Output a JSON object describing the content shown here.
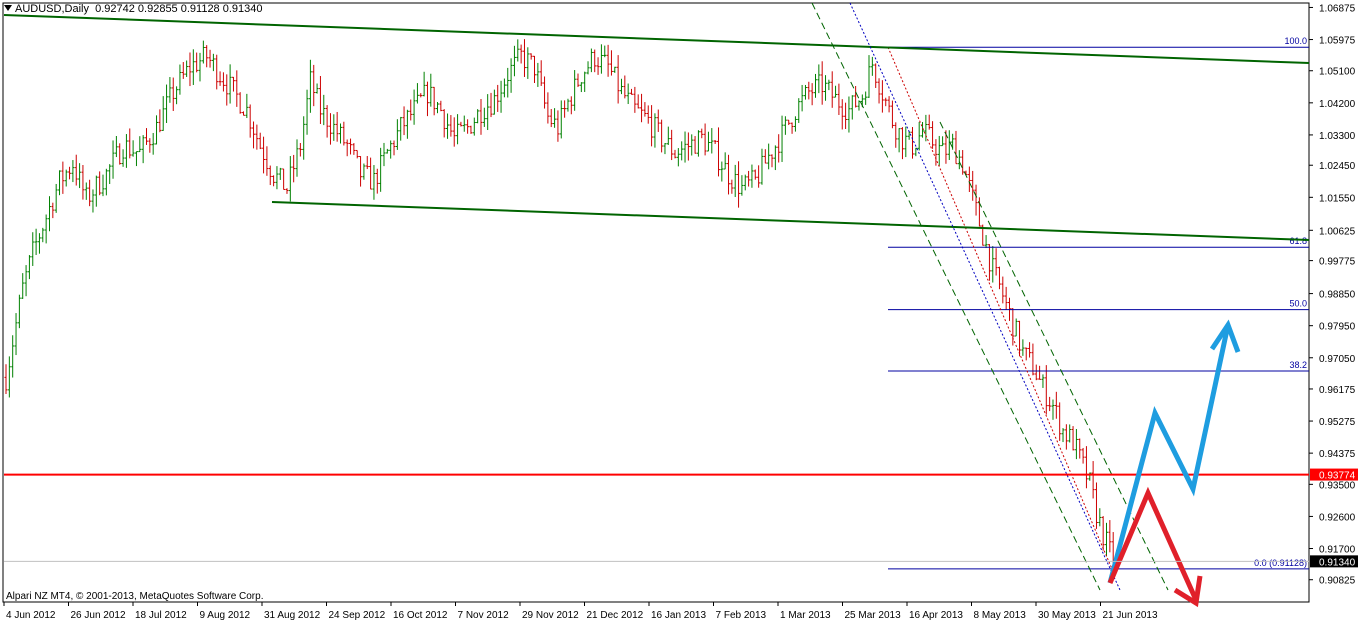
{
  "header": {
    "symbol": "AUDUSD,Daily",
    "ohlc": "0.92742 0.92855 0.91128 0.91340"
  },
  "copyright": "Alpari NZ MT4, © 2001-2013, MetaQuotes Software Corp.",
  "chart_data": {
    "type": "candlestick",
    "price_range": [
      0.902,
      1.07
    ],
    "y_ticks": [
      "1.06875",
      "1.05975",
      "1.05100",
      "1.04200",
      "1.03300",
      "1.02450",
      "1.01550",
      "1.00625",
      "0.99775",
      "0.98850",
      "0.97950",
      "0.97050",
      "0.96175",
      "0.95275",
      "0.94375",
      "0.93500",
      "0.92600",
      "0.91700",
      "0.90825"
    ],
    "x_ticks": [
      "4 Jun 2012",
      "26 Jun 2012",
      "18 Jul 2012",
      "9 Aug 2012",
      "31 Aug 2012",
      "24 Sep 2012",
      "16 Oct 2012",
      "7 Nov 2012",
      "29 Nov 2012",
      "21 Dec 2012",
      "16 Jan 2013",
      "7 Feb 2013",
      "1 Mar 2013",
      "25 Mar 2013",
      "16 Apr 2013",
      "8 May 2013",
      "30 May 2013",
      "21 Jun 2013"
    ],
    "fib_levels": [
      {
        "label": "100.0",
        "price": 1.0576
      },
      {
        "label": "61.8",
        "price": 1.0015
      },
      {
        "label": "50.0",
        "price": 0.984
      },
      {
        "label": "38.2",
        "price": 0.9668
      },
      {
        "label": "0.0 (0.91128)",
        "price": 0.91128
      }
    ],
    "horizontal_line": {
      "label": "0.93774",
      "price": 0.93774,
      "color": "#ff0000"
    },
    "current_price": {
      "label": "0.91340",
      "price": 0.9134
    },
    "colors": {
      "bull": "#008000",
      "bear": "#cc0000",
      "fib": "#0000a0",
      "channel": "#006400",
      "up_arrow": "#1e9de0",
      "down_arrow": "#e0202a"
    },
    "path": [
      [
        0,
        0.965
      ],
      [
        2,
        0.975
      ],
      [
        5,
        0.99
      ],
      [
        8,
        1.0
      ],
      [
        12,
        1.01
      ],
      [
        16,
        1.02
      ],
      [
        20,
        1.025
      ],
      [
        24,
        1.015
      ],
      [
        30,
        1.022
      ],
      [
        35,
        1.03
      ],
      [
        40,
        1.028
      ],
      [
        45,
        1.035
      ],
      [
        50,
        1.045
      ],
      [
        55,
        1.052
      ],
      [
        60,
        1.055
      ],
      [
        64,
        1.05
      ],
      [
        68,
        1.045
      ],
      [
        72,
        1.04
      ],
      [
        76,
        1.03
      ],
      [
        80,
        1.022
      ],
      [
        84,
        1.018
      ],
      [
        88,
        1.03
      ],
      [
        91,
        1.048
      ],
      [
        94,
        1.04
      ],
      [
        98,
        1.035
      ],
      [
        102,
        1.03
      ],
      [
        106,
        1.022
      ],
      [
        110,
        1.02
      ],
      [
        114,
        1.028
      ],
      [
        118,
        1.035
      ],
      [
        122,
        1.04
      ],
      [
        126,
        1.045
      ],
      [
        130,
        1.04
      ],
      [
        134,
        1.032
      ],
      [
        138,
        1.035
      ],
      [
        142,
        1.04
      ],
      [
        146,
        1.043
      ],
      [
        150,
        1.05
      ],
      [
        154,
        1.055
      ],
      [
        158,
        1.052
      ],
      [
        162,
        1.038
      ],
      [
        165,
        1.035
      ],
      [
        168,
        1.042
      ],
      [
        172,
        1.05
      ],
      [
        176,
        1.055
      ],
      [
        180,
        1.052
      ],
      [
        184,
        1.045
      ],
      [
        188,
        1.04
      ],
      [
        192,
        1.037
      ],
      [
        196,
        1.032
      ],
      [
        200,
        1.028
      ],
      [
        204,
        1.03
      ],
      [
        208,
        1.032
      ],
      [
        212,
        1.028
      ],
      [
        216,
        1.022
      ],
      [
        220,
        1.018
      ],
      [
        224,
        1.02
      ],
      [
        228,
        1.027
      ],
      [
        232,
        1.033
      ],
      [
        236,
        1.04
      ],
      [
        240,
        1.045
      ],
      [
        244,
        1.047
      ],
      [
        248,
        1.043
      ],
      [
        252,
        1.04
      ],
      [
        256,
        1.044
      ],
      [
        259,
        1.053
      ],
      [
        262,
        1.045
      ],
      [
        265,
        1.037
      ],
      [
        268,
        1.032
      ],
      [
        271,
        1.03
      ],
      [
        274,
        1.034
      ],
      [
        277,
        1.031
      ],
      [
        280,
        1.028
      ],
      [
        283,
        1.03
      ],
      [
        286,
        1.025
      ],
      [
        289,
        1.015
      ],
      [
        292,
        1.005
      ],
      [
        295,
        0.995
      ],
      [
        298,
        0.988
      ],
      [
        301,
        0.98
      ],
      [
        304,
        0.972
      ],
      [
        307,
        0.968
      ],
      [
        310,
        0.962
      ],
      [
        313,
        0.957
      ],
      [
        316,
        0.95
      ],
      [
        319,
        0.947
      ],
      [
        322,
        0.94
      ],
      [
        324,
        0.935
      ],
      [
        326,
        0.927
      ],
      [
        328,
        0.921
      ],
      [
        330,
        0.916
      ],
      [
        332,
        0.913
      ]
    ]
  },
  "fib_level_label_prefix": ""
}
